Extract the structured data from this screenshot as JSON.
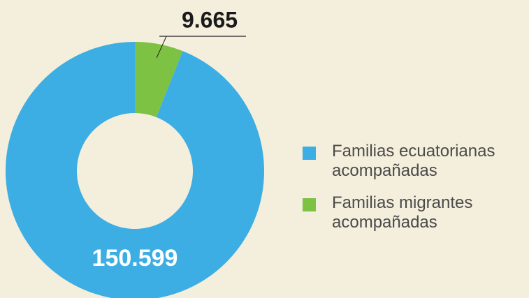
{
  "chart_data": {
    "type": "donut",
    "categories": [
      "Familias migrantes acompañadas",
      "Familias ecuatorianas acompañadas"
    ],
    "values": [
      9665,
      150599
    ],
    "value_labels": [
      "9.665",
      "150.599"
    ],
    "colors": [
      "#7dc242",
      "#3daee3"
    ],
    "legend_order": [
      1,
      0
    ]
  }
}
